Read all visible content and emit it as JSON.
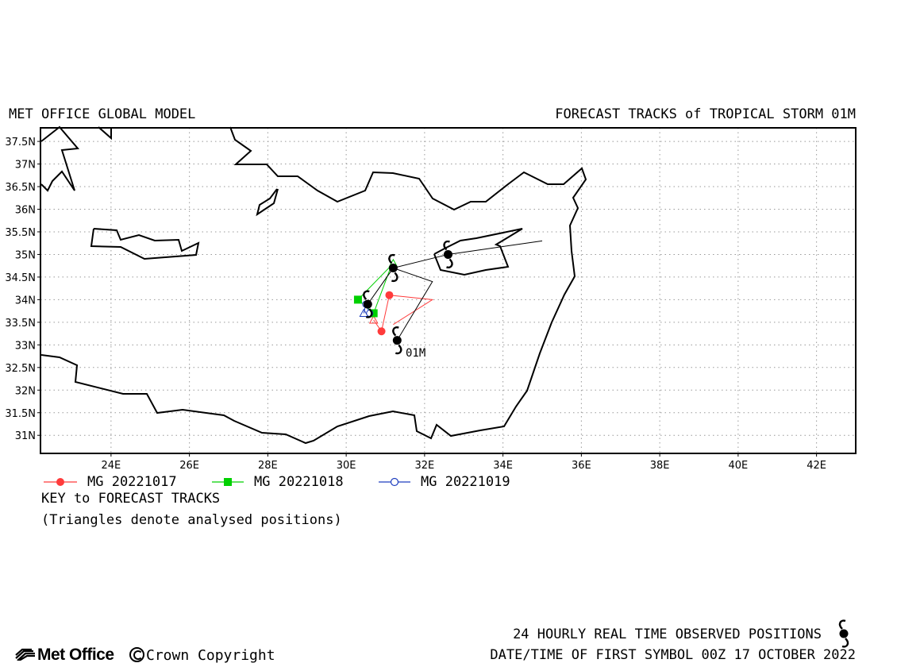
{
  "header": {
    "left_title": "MET OFFICE GLOBAL MODEL",
    "right_title": "FORECAST TRACKS of TROPICAL STORM 01M"
  },
  "map": {
    "lon_range": [
      22.2,
      43.0
    ],
    "lat_range": [
      30.6,
      37.8
    ],
    "lon_ticks": [
      {
        "value": 24,
        "label": "24E"
      },
      {
        "value": 26,
        "label": "26E"
      },
      {
        "value": 28,
        "label": "28E"
      },
      {
        "value": 30,
        "label": "30E"
      },
      {
        "value": 32,
        "label": "32E"
      },
      {
        "value": 34,
        "label": "34E"
      },
      {
        "value": 36,
        "label": "36E"
      },
      {
        "value": 38,
        "label": "38E"
      },
      {
        "value": 40,
        "label": "40E"
      },
      {
        "value": 42,
        "label": "42E"
      }
    ],
    "lat_ticks": [
      {
        "value": 37.5,
        "label": "37.5N"
      },
      {
        "value": 37,
        "label": "37N"
      },
      {
        "value": 36.5,
        "label": "36.5N"
      },
      {
        "value": 36,
        "label": "36N"
      },
      {
        "value": 35.5,
        "label": "35.5N"
      },
      {
        "value": 35,
        "label": "35N"
      },
      {
        "value": 34.5,
        "label": "34.5N"
      },
      {
        "value": 34,
        "label": "34N"
      },
      {
        "value": 33.5,
        "label": "33.5N"
      },
      {
        "value": 33,
        "label": "33N"
      },
      {
        "value": 32.5,
        "label": "32.5N"
      },
      {
        "value": 32,
        "label": "32N"
      },
      {
        "value": 31.5,
        "label": "31.5N"
      },
      {
        "value": 31,
        "label": "31N"
      }
    ],
    "grid": true,
    "storm_label": "01M",
    "colors": {
      "mg1017": "#ff3b3b",
      "mg1018": "#00d000",
      "mg1019": "#1f3fbf",
      "observed": "#000000"
    }
  },
  "chart_data": {
    "type": "scatter",
    "tracks": [
      {
        "name": "MG 20221017",
        "color": "#ff3b3b",
        "marker": "circle",
        "points": [
          [
            30.7,
            33.55
          ],
          [
            30.9,
            33.3
          ],
          [
            31.1,
            34.1
          ],
          [
            32.2,
            34.0
          ],
          [
            31.2,
            33.45
          ]
        ]
      },
      {
        "name": "MG 20221018",
        "color": "#00d000",
        "marker": "square",
        "points": [
          [
            31.2,
            34.8
          ],
          [
            30.3,
            34.0
          ],
          [
            30.7,
            33.7
          ],
          [
            31.15,
            34.75
          ]
        ]
      },
      {
        "name": "MG 20221019",
        "color": "#1f3fbf",
        "marker": "open-circle",
        "points": [
          [
            30.45,
            33.7
          ],
          [
            30.5,
            33.9
          ],
          [
            30.6,
            33.7
          ]
        ]
      }
    ],
    "observed": {
      "name": "24 HOURLY REAL TIME OBSERVED POSITIONS",
      "points": [
        [
          31.3,
          33.1
        ],
        [
          30.55,
          33.9
        ],
        [
          31.2,
          34.7
        ],
        [
          32.6,
          35.0
        ]
      ],
      "track": [
        [
          31.3,
          33.1
        ],
        [
          32.2,
          34.4
        ],
        [
          31.2,
          34.7
        ],
        [
          30.55,
          33.9
        ],
        [
          31.2,
          34.7
        ],
        [
          32.6,
          35.0
        ],
        [
          35.0,
          35.3
        ]
      ]
    }
  },
  "legend": {
    "items": [
      {
        "label": "MG 20221017",
        "color": "#ff3b3b"
      },
      {
        "label": "MG 20221018",
        "color": "#00d000"
      },
      {
        "label": "MG 20221019",
        "color": "#1f3fbf"
      }
    ],
    "key_title": "KEY to FORECAST TRACKS",
    "key_note": "(Triangles denote analysed positions)"
  },
  "footer": {
    "logo_text": "Met Office",
    "copyright": "Crown Copyright",
    "observed_note": "24 HOURLY REAL TIME OBSERVED POSITIONS",
    "datetime_note": "DATE/TIME OF FIRST SYMBOL 00Z 17 OCTOBER 2022"
  }
}
